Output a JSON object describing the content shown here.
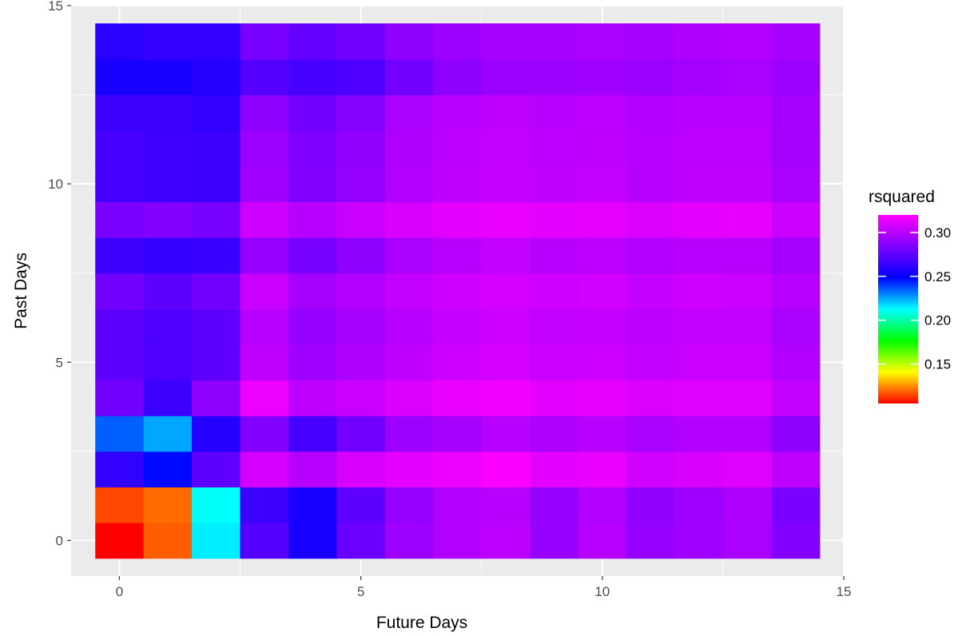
{
  "chart_data": {
    "type": "heatmap",
    "xlabel": "Future Days",
    "ylabel": "Past Days",
    "xlim": [
      -1,
      15
    ],
    "ylim": [
      -1,
      15
    ],
    "x_ticks": [
      0,
      5,
      10,
      15
    ],
    "y_ticks": [
      0,
      5,
      10,
      15
    ],
    "x_tick_labels": [
      "0",
      "5",
      "10",
      "15"
    ],
    "y_tick_labels": [
      "0",
      "5",
      "10",
      "15"
    ],
    "grid": true,
    "legend": {
      "title": "rsquared",
      "placement": "right",
      "min": 0.105,
      "max": 0.32,
      "breaks": [
        0.15,
        0.2,
        0.25,
        0.3
      ],
      "break_labels": [
        "0.15",
        "0.20",
        "0.25",
        "0.30"
      ],
      "colormap": "rainbow (red to magenta)"
    },
    "x": [
      0,
      1,
      2,
      3,
      4,
      5,
      6,
      7,
      8,
      9,
      10,
      11,
      12,
      13,
      14
    ],
    "y": [
      0,
      1,
      2,
      3,
      4,
      5,
      6,
      7,
      8,
      9,
      10,
      11,
      12,
      13,
      14
    ],
    "z": [
      [
        0.105,
        0.118,
        0.215,
        0.272,
        0.255,
        0.278,
        0.292,
        0.298,
        0.301,
        0.291,
        0.3,
        0.29,
        0.293,
        0.296,
        0.285
      ],
      [
        0.115,
        0.12,
        0.212,
        0.265,
        0.255,
        0.275,
        0.29,
        0.298,
        0.3,
        0.29,
        0.298,
        0.289,
        0.293,
        0.297,
        0.283
      ],
      [
        0.262,
        0.247,
        0.275,
        0.308,
        0.3,
        0.309,
        0.312,
        0.315,
        0.319,
        0.312,
        0.314,
        0.307,
        0.309,
        0.311,
        0.302
      ],
      [
        0.235,
        0.225,
        0.258,
        0.285,
        0.268,
        0.28,
        0.292,
        0.295,
        0.3,
        0.297,
        0.3,
        0.296,
        0.298,
        0.298,
        0.288
      ],
      [
        0.28,
        0.265,
        0.288,
        0.315,
        0.302,
        0.305,
        0.31,
        0.314,
        0.316,
        0.312,
        0.313,
        0.31,
        0.311,
        0.311,
        0.303
      ],
      [
        0.275,
        0.27,
        0.275,
        0.302,
        0.293,
        0.297,
        0.302,
        0.306,
        0.308,
        0.305,
        0.306,
        0.303,
        0.305,
        0.305,
        0.298
      ],
      [
        0.275,
        0.27,
        0.275,
        0.3,
        0.29,
        0.295,
        0.3,
        0.304,
        0.306,
        0.303,
        0.304,
        0.301,
        0.303,
        0.303,
        0.296
      ],
      [
        0.28,
        0.275,
        0.28,
        0.305,
        0.295,
        0.298,
        0.303,
        0.306,
        0.308,
        0.306,
        0.307,
        0.304,
        0.306,
        0.305,
        0.299
      ],
      [
        0.265,
        0.262,
        0.264,
        0.29,
        0.282,
        0.288,
        0.296,
        0.3,
        0.303,
        0.3,
        0.301,
        0.298,
        0.3,
        0.3,
        0.294
      ],
      [
        0.283,
        0.285,
        0.282,
        0.306,
        0.3,
        0.305,
        0.309,
        0.312,
        0.314,
        0.312,
        0.313,
        0.31,
        0.312,
        0.313,
        0.305
      ],
      [
        0.268,
        0.266,
        0.265,
        0.293,
        0.285,
        0.29,
        0.298,
        0.302,
        0.304,
        0.302,
        0.303,
        0.3,
        0.302,
        0.302,
        0.296
      ],
      [
        0.268,
        0.266,
        0.265,
        0.292,
        0.284,
        0.289,
        0.297,
        0.301,
        0.303,
        0.301,
        0.302,
        0.299,
        0.301,
        0.301,
        0.295
      ],
      [
        0.265,
        0.265,
        0.262,
        0.288,
        0.28,
        0.286,
        0.296,
        0.3,
        0.302,
        0.3,
        0.301,
        0.298,
        0.3,
        0.3,
        0.294
      ],
      [
        0.255,
        0.255,
        0.258,
        0.272,
        0.268,
        0.27,
        0.28,
        0.288,
        0.292,
        0.292,
        0.293,
        0.292,
        0.294,
        0.296,
        0.292
      ],
      [
        0.26,
        0.262,
        0.262,
        0.282,
        0.276,
        0.28,
        0.288,
        0.292,
        0.295,
        0.295,
        0.296,
        0.295,
        0.297,
        0.298,
        0.295
      ]
    ]
  }
}
